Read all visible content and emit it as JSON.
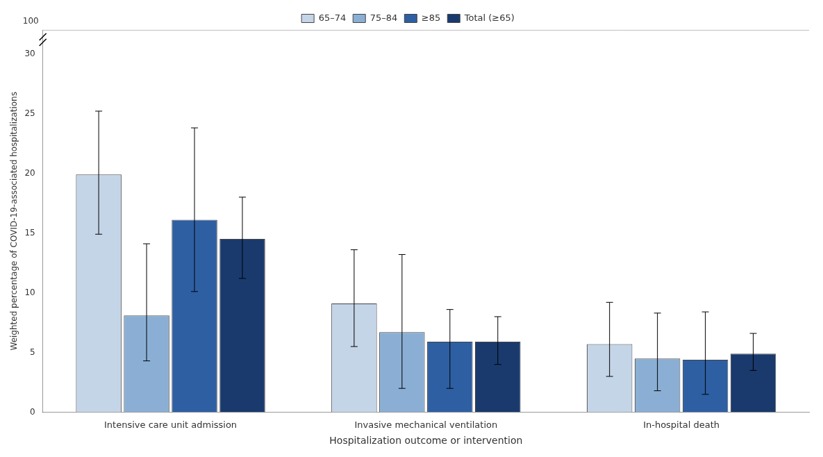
{
  "chart_data": {
    "type": "bar",
    "xlabel": "Hospitalization outcome or intervention",
    "ylabel": "Weighted percentage of COVID-19-associated hospitalizations",
    "categories": [
      "Intensive care unit admission",
      "Invasive mechanical ventilation",
      "In-hospital death"
    ],
    "series": [
      {
        "name": "65–74",
        "color": "#c5d5e8",
        "values": [
          19.9,
          9.1,
          5.7
        ],
        "error_lower": [
          14.9,
          5.5,
          3.0
        ],
        "error_upper": [
          25.2,
          13.6,
          9.2
        ]
      },
      {
        "name": "75–84",
        "color": "#8bafd4",
        "values": [
          8.1,
          6.7,
          4.5
        ],
        "error_lower": [
          4.3,
          2.0,
          1.8
        ],
        "error_upper": [
          14.1,
          13.2,
          8.3
        ]
      },
      {
        "name": "≥85",
        "color": "#2e5fa3",
        "values": [
          16.1,
          5.9,
          4.4
        ],
        "error_lower": [
          10.1,
          2.0,
          1.5
        ],
        "error_upper": [
          23.8,
          8.6,
          8.4
        ]
      },
      {
        "name": "Total (≥65)",
        "color": "#1a3a6e",
        "values": [
          14.5,
          5.9,
          4.9
        ],
        "error_lower": [
          11.2,
          4.0,
          3.5
        ],
        "error_upper": [
          18.0,
          8.0,
          6.6
        ]
      }
    ],
    "ylim": [
      0,
      32
    ],
    "yticks": [
      0,
      5,
      10,
      15,
      20,
      25,
      30
    ],
    "annotations": [
      {
        "text": "100"
      }
    ],
    "grid": false,
    "legend": "top"
  }
}
